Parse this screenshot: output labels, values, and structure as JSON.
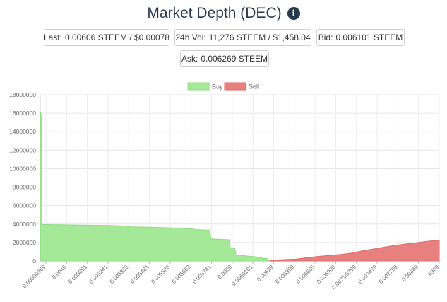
{
  "header": {
    "title": "Market Depth (DEC)",
    "info_icon": "info-circle-icon"
  },
  "stats": {
    "last": {
      "label": "Last:",
      "value": "0.00606 STEEM / $0.00078"
    },
    "vol": {
      "label": "24h Vol:",
      "value": "11,276 STEEM / $1,458.04"
    },
    "bid": {
      "label": "Bid:",
      "value": "0.006101 STEEM"
    },
    "ask": {
      "label": "Ask:",
      "value": "0.006269 STEEM"
    }
  },
  "chart_data": {
    "type": "area",
    "title": "",
    "xlabel": "",
    "ylabel": "",
    "ylim": [
      0,
      18000000
    ],
    "yticks": [
      0,
      2000000,
      4000000,
      6000000,
      8000000,
      10000000,
      12000000,
      14000000,
      16000000,
      18000000
    ],
    "grid": true,
    "legend": "top-center",
    "colors": {
      "buy_fill": "#a5e898",
      "buy_line": "#8fdc80",
      "sell_fill": "#e88080",
      "sell_line": "#dd6a6a"
    },
    "series": [
      {
        "name": "Buy",
        "points": [
          [
            0,
            16100000
          ],
          [
            0.6,
            16100000
          ],
          [
            0.6,
            15900000
          ],
          [
            1.6,
            15900000
          ],
          [
            1.8,
            14000000
          ],
          [
            2.2,
            14000000
          ],
          [
            2.6,
            5000000
          ],
          [
            3.0,
            4300000
          ],
          [
            3.6,
            3950000
          ],
          [
            30,
            3920000
          ],
          [
            60,
            3900000
          ],
          [
            90,
            3870000
          ],
          [
            120,
            3850000
          ],
          [
            150,
            3800000
          ],
          [
            165,
            3700000
          ],
          [
            200,
            3650000
          ],
          [
            240,
            3570000
          ],
          [
            265,
            3500000
          ],
          [
            275,
            3480000
          ],
          [
            280,
            3400000
          ],
          [
            305,
            3350000
          ],
          [
            307,
            2400000
          ],
          [
            340,
            2300000
          ],
          [
            342,
            1450000
          ],
          [
            350,
            1350000
          ],
          [
            352,
            650000
          ],
          [
            380,
            500000
          ],
          [
            395,
            400000
          ],
          [
            400,
            300000
          ],
          [
            408,
            250000
          ],
          [
            410,
            150000
          ],
          [
            414,
            0
          ]
        ]
      },
      {
        "name": "Sell",
        "points": [
          [
            414,
            0
          ],
          [
            416,
            100000
          ],
          [
            440,
            150000
          ],
          [
            460,
            200000
          ],
          [
            480,
            350000
          ],
          [
            500,
            500000
          ],
          [
            520,
            600000
          ],
          [
            540,
            700000
          ],
          [
            560,
            850000
          ],
          [
            580,
            1100000
          ],
          [
            600,
            1300000
          ],
          [
            620,
            1500000
          ],
          [
            640,
            1700000
          ],
          [
            660,
            1850000
          ],
          [
            680,
            2000000
          ],
          [
            700,
            2150000
          ],
          [
            710,
            2200000
          ],
          [
            718,
            2250000
          ]
        ]
      }
    ],
    "x_tick_labels": [
      "0.00000969",
      "0.0046",
      "0.005091",
      "0.005241",
      "0.005388",
      "0.005481",
      "0.005586",
      "0.005662",
      "0.005741",
      "0.0059",
      "0.0060101",
      "0.00629",
      "0.006359",
      "0.006605",
      "0.006906",
      "0.0071/6799",
      "0.007479",
      "0.007759",
      "0.00849",
      "6969"
    ]
  }
}
